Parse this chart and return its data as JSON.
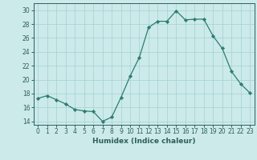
{
  "x": [
    0,
    1,
    2,
    3,
    4,
    5,
    6,
    7,
    8,
    9,
    10,
    11,
    12,
    13,
    14,
    15,
    16,
    17,
    18,
    19,
    20,
    21,
    22,
    23
  ],
  "y": [
    17.3,
    17.7,
    17.1,
    16.5,
    15.7,
    15.5,
    15.4,
    14.0,
    14.6,
    17.4,
    20.5,
    23.2,
    27.5,
    28.4,
    28.4,
    29.9,
    28.6,
    28.7,
    28.7,
    26.3,
    24.5,
    21.2,
    19.4,
    18.1
  ],
  "line_color": "#2d7d6e",
  "marker": "D",
  "marker_size": 2.2,
  "bg_color": "#cceaea",
  "grid_color": "#aad4d4",
  "tick_color": "#2d5f5a",
  "xlabel": "Humidex (Indice chaleur)",
  "ylim": [
    13.5,
    31.0
  ],
  "xlim": [
    -0.5,
    23.5
  ],
  "yticks": [
    14,
    16,
    18,
    20,
    22,
    24,
    26,
    28,
    30
  ],
  "xticks": [
    0,
    1,
    2,
    3,
    4,
    5,
    6,
    7,
    8,
    9,
    10,
    11,
    12,
    13,
    14,
    15,
    16,
    17,
    18,
    19,
    20,
    21,
    22,
    23
  ],
  "xtick_labels": [
    "0",
    "1",
    "2",
    "3",
    "4",
    "5",
    "6",
    "7",
    "8",
    "9",
    "10",
    "11",
    "12",
    "13",
    "14",
    "15",
    "16",
    "17",
    "18",
    "19",
    "20",
    "21",
    "22",
    "23"
  ]
}
